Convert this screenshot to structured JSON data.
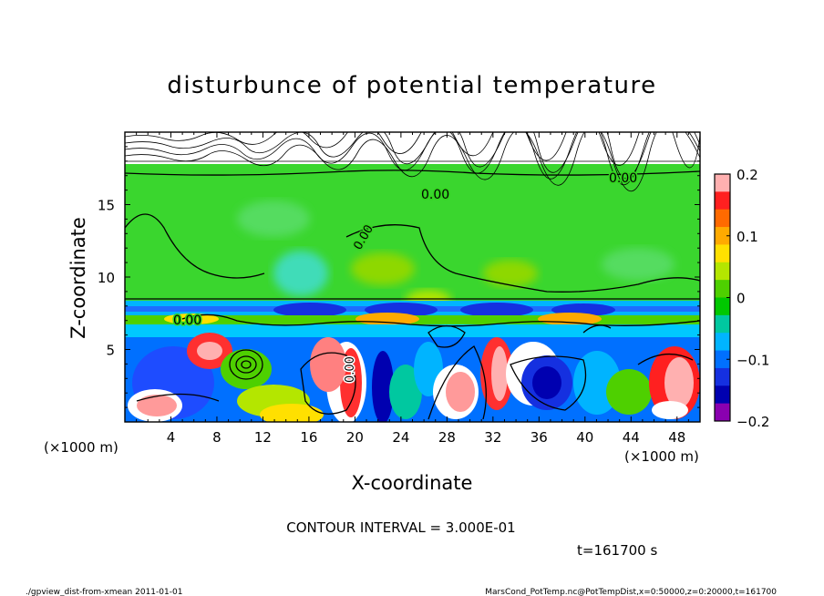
{
  "chart_data": {
    "type": "heatmap",
    "title": "disturbunce of potential temperature",
    "xlabel": "X-coordinate",
    "ylabel": "Z-coordinate",
    "x_unit_left": "(×1000 m)",
    "x_unit_right": "(×1000 m)",
    "xlim": [
      0,
      50
    ],
    "ylim": [
      0,
      20
    ],
    "x_ticks": [
      4,
      8,
      12,
      16,
      20,
      24,
      28,
      32,
      36,
      40,
      44,
      48
    ],
    "y_ticks": [
      5,
      10,
      15
    ],
    "colorbar": {
      "range": [
        -0.2,
        0.2
      ],
      "tick_values": [
        0.2,
        0.1,
        0,
        -0.1,
        -0.2
      ],
      "tick_labels": [
        "0.2",
        "0.1",
        "0",
        "−0.1",
        "−0.2"
      ],
      "colors": [
        "#ffb0b0",
        "#ff2020",
        "#ff6a00",
        "#ffaa00",
        "#ffe000",
        "#b4e600",
        "#4ed000",
        "#00c800",
        "#00c8a0",
        "#00b4ff",
        "#0070ff",
        "#1530e0",
        "#0000b0",
        "#8a00b0"
      ]
    },
    "contour_interval": "CONTOUR INTERVAL = 3.000E-01",
    "contour_labels": [
      "0.00",
      "0.00",
      "0.00",
      "0.00",
      "0.00"
    ],
    "time_label": "t=161700 s"
  },
  "footer": {
    "left": "./gpview_dist-from-xmean   2011-01-01",
    "right": "MarsCond_PotTemp.nc@PotTempDist,x=0:50000,z=0:20000,t=161700"
  }
}
